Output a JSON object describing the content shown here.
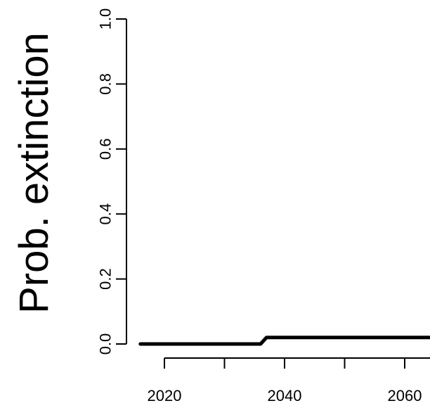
{
  "chart_data": {
    "type": "line",
    "ylabel": "Prob. extinction",
    "xlabel": "",
    "title": "",
    "ylim": [
      0.0,
      1.0
    ],
    "yticks": [
      0.0,
      0.2,
      0.4,
      0.6,
      0.8,
      1.0
    ],
    "ytick_labels": [
      "0.0",
      "0.2",
      "0.4",
      "0.6",
      "0.8",
      "1.0"
    ],
    "xticks": [
      2020,
      2030,
      2040,
      2050,
      2060
    ],
    "xtick_labels": [
      "2020",
      "",
      "2040",
      "",
      "2060"
    ],
    "grid": false,
    "series": [
      {
        "color": "#000000",
        "x": [
          2016,
          2036,
          2037,
          2070
        ],
        "y": [
          0.0,
          0.0,
          0.02,
          0.02
        ]
      }
    ]
  }
}
